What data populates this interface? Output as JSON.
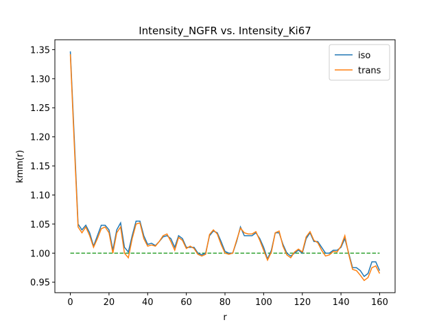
{
  "chart_data": {
    "type": "line",
    "title": "Intensity_NGFR vs. Intensity_Ki67",
    "xlabel": "r",
    "ylabel": "kmm(r)",
    "x": [
      0,
      2,
      4,
      6,
      8,
      10,
      12,
      14,
      16,
      18,
      20,
      22,
      24,
      26,
      28,
      30,
      32,
      34,
      36,
      38,
      40,
      42,
      44,
      46,
      48,
      50,
      52,
      54,
      56,
      58,
      60,
      62,
      64,
      66,
      68,
      70,
      72,
      74,
      76,
      78,
      80,
      82,
      84,
      86,
      88,
      90,
      92,
      94,
      96,
      98,
      100,
      102,
      104,
      106,
      108,
      110,
      112,
      114,
      116,
      118,
      120,
      122,
      124,
      126,
      128,
      130,
      132,
      134,
      136,
      138,
      140,
      142,
      144,
      146,
      148,
      150,
      152,
      154,
      156,
      158,
      160
    ],
    "series": [
      {
        "name": "iso",
        "color": "#1f77b4",
        "values": [
          1.347,
          1.2,
          1.05,
          1.04,
          1.048,
          1.035,
          1.012,
          1.03,
          1.048,
          1.048,
          1.04,
          1.005,
          1.04,
          1.052,
          1.01,
          1.002,
          1.03,
          1.055,
          1.055,
          1.03,
          1.015,
          1.017,
          1.013,
          1.02,
          1.028,
          1.03,
          1.025,
          1.01,
          1.03,
          1.025,
          1.01,
          1.01,
          1.01,
          1.0,
          0.997,
          1.0,
          1.03,
          1.038,
          1.035,
          1.02,
          1.003,
          1.0,
          1.0,
          1.02,
          1.045,
          1.03,
          1.03,
          1.03,
          1.035,
          1.025,
          1.01,
          0.99,
          1.005,
          1.035,
          1.035,
          1.015,
          1.0,
          0.995,
          1.0,
          1.005,
          1.0,
          1.025,
          1.035,
          1.02,
          1.02,
          1.01,
          1.0,
          1.0,
          1.005,
          1.005,
          1.01,
          1.025,
          1.0,
          0.975,
          0.975,
          0.97,
          0.96,
          0.965,
          0.985,
          0.985,
          0.97
        ]
      },
      {
        "name": "trans",
        "color": "#ff7f0e",
        "values": [
          1.342,
          1.19,
          1.045,
          1.035,
          1.045,
          1.03,
          1.01,
          1.025,
          1.042,
          1.045,
          1.035,
          1.0,
          1.035,
          1.045,
          1.0,
          0.992,
          1.025,
          1.05,
          1.052,
          1.025,
          1.012,
          1.014,
          1.012,
          1.02,
          1.03,
          1.033,
          1.02,
          1.005,
          1.027,
          1.022,
          1.008,
          1.012,
          1.008,
          0.998,
          0.995,
          0.998,
          1.032,
          1.04,
          1.033,
          1.015,
          1.0,
          0.998,
          1.0,
          1.022,
          1.043,
          1.035,
          1.033,
          1.033,
          1.037,
          1.022,
          1.005,
          0.988,
          1.002,
          1.035,
          1.038,
          1.012,
          0.997,
          0.992,
          1.002,
          1.007,
          1.002,
          1.028,
          1.037,
          1.022,
          1.018,
          1.005,
          0.995,
          0.997,
          1.003,
          1.002,
          1.012,
          1.03,
          0.998,
          0.972,
          0.97,
          0.962,
          0.953,
          0.958,
          0.975,
          0.978,
          0.965
        ]
      }
    ],
    "hline": {
      "y": 1.0,
      "x": [
        0,
        160
      ],
      "color": "#2ca02c"
    },
    "xlim": [
      -8,
      168
    ],
    "ylim": [
      0.932,
      1.367
    ],
    "xticks": [
      0,
      20,
      40,
      60,
      80,
      100,
      120,
      140,
      160
    ],
    "yticks": [
      {
        "value": 0.95,
        "label": "0.95"
      },
      {
        "value": 1.0,
        "label": "1.00"
      },
      {
        "value": 1.05,
        "label": "1.05"
      },
      {
        "value": 1.1,
        "label": "1.10"
      },
      {
        "value": 1.15,
        "label": "1.15"
      },
      {
        "value": 1.2,
        "label": "1.20"
      },
      {
        "value": 1.25,
        "label": "1.25"
      },
      {
        "value": 1.3,
        "label": "1.30"
      },
      {
        "value": 1.35,
        "label": "1.35"
      }
    ],
    "legend": "upper right"
  }
}
